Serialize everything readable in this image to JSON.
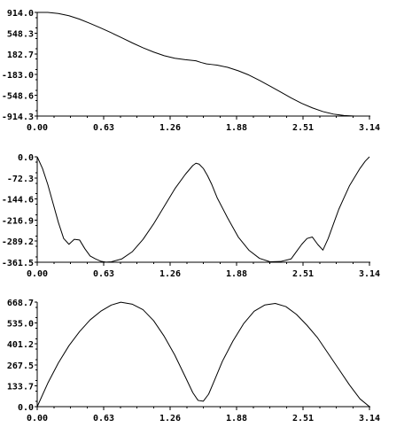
{
  "chart_data": [
    {
      "type": "line",
      "title": "",
      "xlabel": "",
      "ylabel": "",
      "xlim": [
        0.0,
        3.14
      ],
      "ylim": [
        -914.3,
        914.0
      ],
      "x_ticks": [
        "0.00",
        "0.63",
        "1.26",
        "1.88",
        "2.51",
        "3.14"
      ],
      "y_ticks": [
        "914.0",
        "548.3",
        "182.7",
        "-183.0",
        "-548.6",
        "-914.3"
      ],
      "grid": false,
      "series": [
        {
          "x": [
            0.0,
            0.1,
            0.2,
            0.3,
            0.4,
            0.5,
            0.6,
            0.7,
            0.8,
            0.9,
            1.0,
            1.1,
            1.2,
            1.3,
            1.4,
            1.5,
            1.55,
            1.6,
            1.65,
            1.7,
            1.8,
            1.9,
            2.0,
            2.1,
            2.2,
            2.3,
            2.4,
            2.5,
            2.6,
            2.7,
            2.8,
            2.9,
            3.0,
            3.05,
            3.14
          ],
          "y": [
            914,
            914,
            895,
            855,
            795,
            720,
            640,
            555,
            465,
            375,
            290,
            215,
            150,
            105,
            80,
            60,
            30,
            5,
            -5,
            -15,
            -55,
            -115,
            -190,
            -285,
            -385,
            -490,
            -595,
            -690,
            -770,
            -835,
            -880,
            -905,
            -914,
            -914,
            -914
          ]
        }
      ]
    },
    {
      "type": "line",
      "title": "",
      "xlabel": "",
      "ylabel": "",
      "xlim": [
        0.0,
        3.14
      ],
      "ylim": [
        -361.5,
        0.0
      ],
      "x_ticks": [
        "0.00",
        "0.63",
        "1.26",
        "1.88",
        "2.51",
        "3.14"
      ],
      "y_ticks": [
        "0.0",
        "-72.3",
        "-144.6",
        "-216.9",
        "-289.2",
        "-361.5"
      ],
      "grid": false,
      "series": [
        {
          "x": [
            0.0,
            0.05,
            0.1,
            0.15,
            0.2,
            0.25,
            0.3,
            0.35,
            0.4,
            0.45,
            0.5,
            0.55,
            0.6,
            0.65,
            0.7,
            0.8,
            0.9,
            1.0,
            1.1,
            1.2,
            1.3,
            1.4,
            1.47,
            1.5,
            1.53,
            1.57,
            1.61,
            1.65,
            1.7,
            1.8,
            1.9,
            2.0,
            2.1,
            2.2,
            2.3,
            2.4,
            2.45,
            2.5,
            2.55,
            2.6,
            2.65,
            2.7,
            2.75,
            2.8,
            2.85,
            2.9,
            2.95,
            3.0,
            3.05,
            3.1,
            3.14
          ],
          "y": [
            0,
            -40,
            -95,
            -160,
            -225,
            -280,
            -300,
            -283,
            -285,
            -315,
            -340,
            -350,
            -358,
            -361,
            -360,
            -350,
            -325,
            -283,
            -230,
            -170,
            -110,
            -60,
            -30,
            -22,
            -25,
            -40,
            -65,
            -95,
            -140,
            -210,
            -275,
            -320,
            -348,
            -360,
            -359,
            -350,
            -325,
            -300,
            -280,
            -275,
            -300,
            -320,
            -280,
            -230,
            -180,
            -140,
            -100,
            -70,
            -40,
            -15,
            0
          ]
        }
      ]
    },
    {
      "type": "line",
      "title": "",
      "xlabel": "",
      "ylabel": "",
      "xlim": [
        0.0,
        3.14
      ],
      "ylim": [
        0.0,
        668.7
      ],
      "x_ticks": [
        "0.00",
        "0.63",
        "1.26",
        "1.88",
        "2.51",
        "3.14"
      ],
      "y_ticks": [
        "668.7",
        "535.0",
        "401.2",
        "267.5",
        "133.7",
        "0.0"
      ],
      "grid": false,
      "series": [
        {
          "x": [
            0.0,
            0.1,
            0.2,
            0.3,
            0.4,
            0.5,
            0.6,
            0.7,
            0.79,
            0.9,
            1.0,
            1.1,
            1.2,
            1.3,
            1.4,
            1.47,
            1.52,
            1.57,
            1.62,
            1.67,
            1.75,
            1.85,
            1.95,
            2.05,
            2.15,
            2.25,
            2.35,
            2.45,
            2.55,
            2.65,
            2.75,
            2.85,
            2.95,
            3.05,
            3.14
          ],
          "y": [
            0,
            150,
            280,
            390,
            480,
            555,
            610,
            650,
            668,
            655,
            620,
            550,
            450,
            330,
            190,
            90,
            40,
            35,
            80,
            160,
            290,
            420,
            530,
            610,
            650,
            660,
            640,
            590,
            520,
            440,
            340,
            240,
            140,
            50,
            0
          ]
        }
      ]
    }
  ]
}
